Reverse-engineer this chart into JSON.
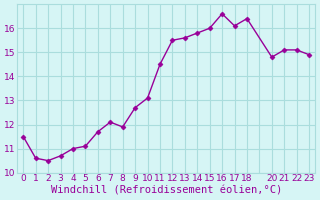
{
  "x": [
    0,
    1,
    2,
    3,
    4,
    5,
    6,
    7,
    8,
    9,
    10,
    11,
    12,
    13,
    14,
    15,
    16,
    17,
    18,
    20,
    21,
    22,
    23
  ],
  "y": [
    11.5,
    10.6,
    10.5,
    10.7,
    11.0,
    11.1,
    11.7,
    12.1,
    11.9,
    12.7,
    13.1,
    14.5,
    15.5,
    15.6,
    15.8,
    16.0,
    16.6,
    16.1,
    16.4,
    14.8,
    15.1,
    15.1,
    14.9
  ],
  "line_color": "#990099",
  "marker": "D",
  "marker_size": 2.5,
  "bg_color": "#d6f5f5",
  "grid_color": "#aadddd",
  "xlabel": "Windchill (Refroidissement éolien,°C)",
  "xlabel_color": "#990099",
  "tick_color": "#990099",
  "ylim": [
    10,
    17
  ],
  "yticks": [
    10,
    11,
    12,
    13,
    14,
    15,
    16
  ],
  "xticks_all": [
    0,
    1,
    2,
    3,
    4,
    5,
    6,
    7,
    8,
    9,
    10,
    11,
    12,
    13,
    14,
    15,
    16,
    17,
    18,
    19,
    20,
    21,
    22,
    23
  ],
  "xtick_labels": [
    "0",
    "1",
    "2",
    "3",
    "4",
    "5",
    "6",
    "7",
    "8",
    "9",
    "10",
    "11",
    "12",
    "13",
    "14",
    "15",
    "16",
    "17",
    "18",
    "",
    "20",
    "21",
    "22",
    "23"
  ],
  "xlabel_fontsize": 7.5,
  "tick_fontsize": 6.5
}
